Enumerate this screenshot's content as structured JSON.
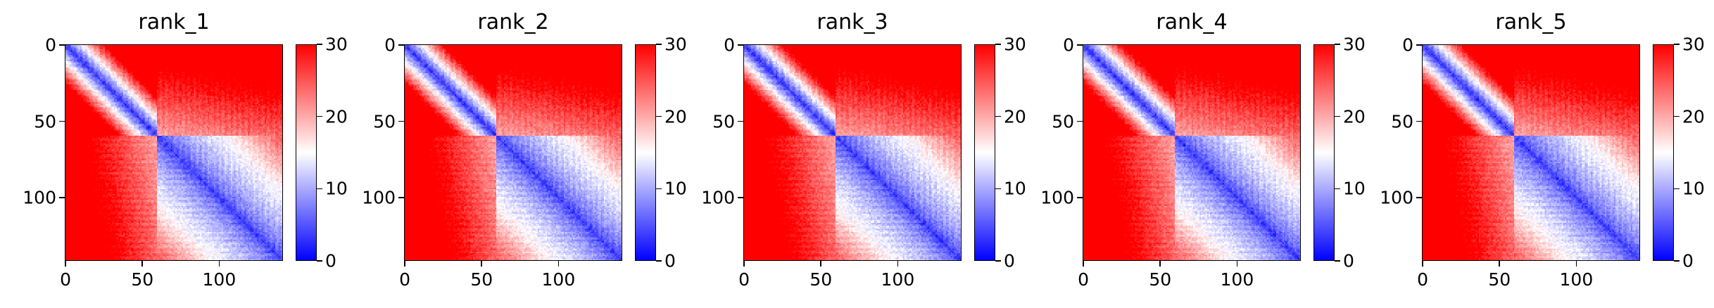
{
  "colors": {
    "low": "#0000ff",
    "mid": "#ffffff",
    "high": "#ff0000",
    "axis": "#000000"
  },
  "chart_data": [
    {
      "type": "heatmap",
      "title": "rank_1",
      "size": 142,
      "xticks": [
        "0",
        "50",
        "100"
      ],
      "yticks": [
        "0",
        "50",
        "100"
      ],
      "colorbar": {
        "min": 0,
        "max": 30,
        "ticks": [
          "0",
          "10",
          "20",
          "30"
        ],
        "cmap": "bwr"
      },
      "domain_boundary": 60
    },
    {
      "type": "heatmap",
      "title": "rank_2",
      "size": 142,
      "xticks": [
        "0",
        "50",
        "100"
      ],
      "yticks": [
        "0",
        "50",
        "100"
      ],
      "colorbar": {
        "min": 0,
        "max": 30,
        "ticks": [
          "0",
          "10",
          "20",
          "30"
        ],
        "cmap": "bwr"
      },
      "domain_boundary": 60
    },
    {
      "type": "heatmap",
      "title": "rank_3",
      "size": 142,
      "xticks": [
        "0",
        "50",
        "100"
      ],
      "yticks": [
        "0",
        "50",
        "100"
      ],
      "colorbar": {
        "min": 0,
        "max": 30,
        "ticks": [
          "0",
          "10",
          "20",
          "30"
        ],
        "cmap": "bwr"
      },
      "domain_boundary": 60
    },
    {
      "type": "heatmap",
      "title": "rank_4",
      "size": 142,
      "xticks": [
        "0",
        "50",
        "100"
      ],
      "yticks": [
        "0",
        "50",
        "100"
      ],
      "colorbar": {
        "min": 0,
        "max": 30,
        "ticks": [
          "0",
          "10",
          "20",
          "30"
        ],
        "cmap": "bwr"
      },
      "domain_boundary": 60
    },
    {
      "type": "heatmap",
      "title": "rank_5",
      "size": 142,
      "xticks": [
        "0",
        "50",
        "100"
      ],
      "yticks": [
        "0",
        "50",
        "100"
      ],
      "colorbar": {
        "min": 0,
        "max": 30,
        "ticks": [
          "0",
          "10",
          "20",
          "30"
        ],
        "cmap": "bwr"
      },
      "domain_boundary": 60
    }
  ]
}
